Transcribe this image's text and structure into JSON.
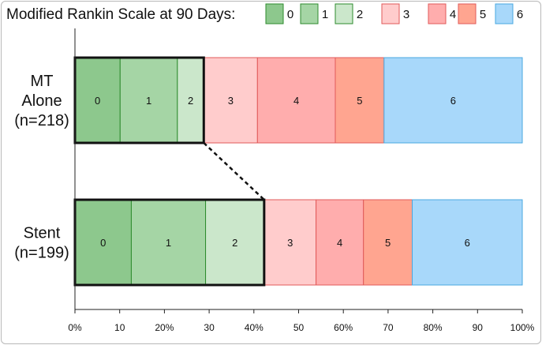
{
  "chart_data": {
    "type": "bar",
    "orientation": "horizontal",
    "stacked": true,
    "legend_title": "Modified Rankin Scale at 90 Days:",
    "legend_placement": "top",
    "categories": [
      "0",
      "1",
      "2",
      "3",
      "4",
      "5",
      "6"
    ],
    "colors": {
      "0": {
        "fill": "#8dc88d",
        "stroke": "#2e8b2e"
      },
      "1": {
        "fill": "#a5d5a5",
        "stroke": "#2e8b2e"
      },
      "2": {
        "fill": "#cbe7cb",
        "stroke": "#2e8b2e"
      },
      "3": {
        "fill": "#ffcccc",
        "stroke": "#e05a5a"
      },
      "4": {
        "fill": "#ffadad",
        "stroke": "#e05a5a"
      },
      "5": {
        "fill": "#ffa590",
        "stroke": "#e05a5a"
      },
      "6": {
        "fill": "#a8d8fa",
        "stroke": "#4aa8e0"
      }
    },
    "rows": [
      {
        "label_lines": [
          "MT",
          "Alone",
          "(n=218)"
        ],
        "values": [
          10.1,
          12.8,
          5.9,
          12.0,
          17.4,
          10.9,
          30.9
        ],
        "highlight_through": 2
      },
      {
        "label_lines": [
          "Stent",
          "(n=199)"
        ],
        "values": [
          12.6,
          16.6,
          13.1,
          11.6,
          10.6,
          10.9,
          24.6
        ],
        "highlight_through": 2
      }
    ],
    "x_ticks": [
      {
        "value": 0,
        "label": "0%"
      },
      {
        "value": 10,
        "label": "10"
      },
      {
        "value": 20,
        "label": "20%"
      },
      {
        "value": 30,
        "label": "30"
      },
      {
        "value": 40,
        "label": "40%"
      },
      {
        "value": 50,
        "label": "50"
      },
      {
        "value": 60,
        "label": "60%"
      },
      {
        "value": 70,
        "label": "70"
      },
      {
        "value": 80,
        "label": "80%"
      },
      {
        "value": 90,
        "label": "90"
      },
      {
        "value": 100,
        "label": "100%"
      }
    ],
    "xlim": [
      0,
      100
    ],
    "grid": false
  }
}
